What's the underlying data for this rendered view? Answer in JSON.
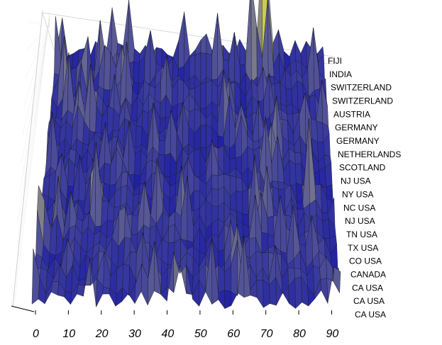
{
  "chart_data": {
    "type": "surface",
    "title": "",
    "xlabel": "",
    "ylabel": "",
    "xlim": [
      0,
      95
    ],
    "x_ticks": [
      "0",
      "10",
      "20",
      "30",
      "40",
      "50",
      "60",
      "70",
      "80",
      "90"
    ],
    "y_categories": [
      "FIJI",
      "INDIA",
      "SWITZERLAND",
      "SWITZERLAND",
      "AUSTRIA",
      "GERMANY",
      "GERMANY",
      "NETHERLANDS",
      "SCOTLAND",
      "NJ  USA",
      "NY  USA",
      "NC  USA",
      "NJ  USA",
      "TN  USA",
      "TX  USA",
      "CO  USA",
      "CANADA",
      "CA  USA",
      "CA  USA",
      "CA  USA"
    ],
    "colormap": {
      "low": "#1a1aa6",
      "mid": "#7b7c8a",
      "high": "#f2f234"
    },
    "mesh_color": "#000000",
    "grid": true,
    "peaks": [
      {
        "x": 25,
        "row": 0,
        "height": 0.55
      },
      {
        "x": 73,
        "row": 0,
        "height": 1.0
      },
      {
        "x": 76,
        "row": 0,
        "height": 0.8
      },
      {
        "x": 70,
        "row": 1,
        "height": 0.85
      },
      {
        "x": 75,
        "row": 1,
        "height": 0.7
      },
      {
        "x": 12,
        "row": 2,
        "height": 0.45
      },
      {
        "x": 40,
        "row": 3,
        "height": 0.4
      },
      {
        "x": 5,
        "row": 4,
        "height": 0.55
      },
      {
        "x": 60,
        "row": 5,
        "height": 0.5
      },
      {
        "x": 35,
        "row": 7,
        "height": 0.45
      },
      {
        "x": 28,
        "row": 8,
        "height": 0.4
      },
      {
        "x": 55,
        "row": 9,
        "height": 0.35
      },
      {
        "x": 18,
        "row": 12,
        "height": 0.7
      },
      {
        "x": 38,
        "row": 12,
        "height": 0.55
      },
      {
        "x": 6,
        "row": 13,
        "height": 0.5
      },
      {
        "x": 25,
        "row": 14,
        "height": 0.3
      },
      {
        "x": 70,
        "row": 14,
        "height": 0.45
      },
      {
        "x": 63,
        "row": 17,
        "height": 0.4
      },
      {
        "x": 75,
        "row": 17,
        "height": 0.35
      },
      {
        "x": 33,
        "row": 18,
        "height": 0.3
      },
      {
        "x": 95,
        "row": 19,
        "height": 0.35
      }
    ]
  }
}
